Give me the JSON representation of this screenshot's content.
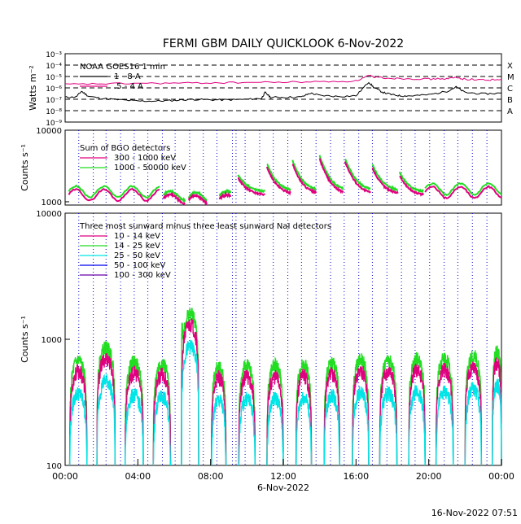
{
  "title": "FERMI GBM DAILY QUICKLOOK    6-Nov-2022",
  "footer": "16-Nov-2022 07:51",
  "colors": {
    "black": "#000000",
    "magenta": "#e0007f",
    "green": "#22dd22",
    "cyan": "#00e5e5",
    "blue": "#0000ee",
    "purple": "#6600aa",
    "vline": "#0000cc"
  },
  "chart_data": [
    {
      "type": "line",
      "panel": "goes",
      "ylabel": "Watts m⁻²",
      "yscale": "log",
      "ylim": [
        1e-09,
        0.001
      ],
      "ytick_labels": [
        "10⁻³",
        "10⁻⁴",
        "10⁻⁵",
        "10⁻⁶",
        "10⁻⁷",
        "10⁻⁸",
        "10⁻⁹"
      ],
      "flare_classes": [
        "X",
        "M",
        "C",
        "B",
        "A"
      ],
      "legend_title": "NOAA GOES16 1 min",
      "series": [
        {
          "name": "1 - 8 A",
          "color_key": "black",
          "x": [
            0,
            0.6,
            0.9,
            1.3,
            2,
            3,
            4,
            5,
            6,
            7,
            8,
            9,
            10,
            10.8,
            11,
            11.3,
            12,
            13,
            13.5,
            14,
            15,
            16,
            16.7,
            17,
            17.5,
            18,
            18.5,
            19,
            20,
            21,
            21.5,
            22,
            23,
            24
          ],
          "y": [
            1.5e-07,
            1.6e-07,
            5e-07,
            1.8e-07,
            1.2e-07,
            9e-08,
            7e-08,
            7e-08,
            8e-08,
            1e-07,
            9e-08,
            9e-08,
            1e-07,
            1.2e-07,
            4e-07,
            1.5e-07,
            1.5e-07,
            1.6e-07,
            3.5e-07,
            2.2e-07,
            1.8e-07,
            2e-07,
            3.3e-06,
            1e-06,
            4e-07,
            2.5e-07,
            2e-07,
            2e-07,
            2.5e-07,
            5e-07,
            1.2e-06,
            4e-07,
            3e-07,
            3.5e-07
          ]
        },
        {
          "name": ".5 - 4 A",
          "color_key": "magenta",
          "x": [
            0,
            2,
            4,
            6,
            8,
            10,
            12,
            14,
            16,
            16.7,
            17,
            18,
            19,
            20,
            21,
            21.5,
            22,
            23,
            24
          ],
          "y": [
            2e-06,
            2.3e-06,
            2.5e-06,
            2.6e-06,
            2.8e-06,
            3e-06,
            3.2e-06,
            3.5e-06,
            4e-06,
            1.2e-05,
            9e-06,
            7e-06,
            6.5e-06,
            6e-06,
            6.5e-06,
            8e-06,
            6e-06,
            5e-06,
            5.5e-06
          ]
        }
      ]
    },
    {
      "type": "line",
      "panel": "bgo",
      "ylabel": "Counts s⁻¹",
      "yscale": "log",
      "ylim": [
        900,
        10000
      ],
      "ytick_labels": [
        "10000",
        "1000"
      ],
      "legend_title": "Sum of BGO detectors",
      "series": [
        {
          "name": "300 - 1000 keV",
          "color_key": "magenta"
        },
        {
          "name": "1000 - 50000 keV",
          "color_key": "green"
        }
      ],
      "orbit_segments": [
        {
          "x0": 0.2,
          "x1": 5.2,
          "base": 1150,
          "peak": 1650
        },
        {
          "x0": 5.4,
          "x1": 6.6,
          "base": 1050,
          "peak": 1400
        },
        {
          "x0": 6.8,
          "x1": 7.8,
          "base": 1000,
          "peak": 1350
        },
        {
          "x0": 8.5,
          "x1": 9.1,
          "base": 1050,
          "peak": 1400
        },
        {
          "x0": 9.5,
          "x1": 11.0,
          "base": 1350,
          "peak": 2400
        },
        {
          "x0": 11.1,
          "x1": 12.4,
          "base": 1400,
          "peak": 3400
        },
        {
          "x0": 12.5,
          "x1": 13.8,
          "base": 1400,
          "peak": 3800
        },
        {
          "x0": 14.0,
          "x1": 15.3,
          "base": 1400,
          "peak": 4400
        },
        {
          "x0": 15.4,
          "x1": 16.8,
          "base": 1400,
          "peak": 4000
        },
        {
          "x0": 16.9,
          "x1": 18.3,
          "base": 1400,
          "peak": 3300
        },
        {
          "x0": 18.4,
          "x1": 19.7,
          "base": 1350,
          "peak": 2600
        },
        {
          "x0": 19.8,
          "x1": 24.0,
          "base": 1250,
          "peak": 1800
        }
      ]
    },
    {
      "type": "line",
      "panel": "nai",
      "ylabel": "Counts s⁻¹",
      "yscale": "log",
      "ylim": [
        100,
        10000
      ],
      "ytick_labels": [
        "10000",
        "1000",
        "100"
      ],
      "legend_title": "Three most sunward minus three least sunward NaI detectors",
      "series": [
        {
          "name": "10 - 14 keV",
          "color_key": "magenta",
          "scale": 0.82
        },
        {
          "name": "14 - 25 keV",
          "color_key": "green",
          "scale": 1.0
        },
        {
          "name": "25 - 50 keV",
          "color_key": "cyan",
          "scale": 0.55
        },
        {
          "name": "50 - 100 keV",
          "color_key": "blue",
          "scale": 0.0
        },
        {
          "name": "100 - 300 keV",
          "color_key": "purple",
          "scale": 0.0
        }
      ],
      "day_segments": [
        {
          "x0": 0.25,
          "x1": 1.2,
          "peak": 680
        },
        {
          "x0": 1.75,
          "x1": 2.75,
          "peak": 860
        },
        {
          "x0": 3.3,
          "x1": 4.3,
          "peak": 660
        },
        {
          "x0": 4.85,
          "x1": 5.8,
          "peak": 640
        },
        {
          "x0": 6.4,
          "x1": 7.35,
          "peak": 1600
        },
        {
          "x0": 8.05,
          "x1": 8.85,
          "peak": 600
        },
        {
          "x0": 9.55,
          "x1": 10.45,
          "peak": 620
        },
        {
          "x0": 11.1,
          "x1": 12.0,
          "peak": 620
        },
        {
          "x0": 12.7,
          "x1": 13.55,
          "peak": 630
        },
        {
          "x0": 14.25,
          "x1": 15.1,
          "peak": 650
        },
        {
          "x0": 15.8,
          "x1": 16.7,
          "peak": 690
        },
        {
          "x0": 17.3,
          "x1": 18.25,
          "peak": 680
        },
        {
          "x0": 18.9,
          "x1": 19.8,
          "peak": 700
        },
        {
          "x0": 20.4,
          "x1": 21.35,
          "peak": 700
        },
        {
          "x0": 22.0,
          "x1": 22.9,
          "peak": 740
        },
        {
          "x0": 23.5,
          "x1": 24.0,
          "peak": 800
        }
      ],
      "x_tick_labels": [
        "00:00",
        "04:00",
        "08:00",
        "12:00",
        "16:00",
        "20:00",
        "00:00"
      ],
      "xlabel": "6-Nov-2022",
      "xlim": [
        0,
        24
      ]
    }
  ],
  "orbit_boundaries_hours": [
    0.75,
    1.55,
    2.25,
    3.05,
    3.8,
    4.55,
    5.35,
    6.05,
    6.85,
    7.6,
    8.35,
    9.2,
    9.4,
    9.9,
    10.7,
    11.45,
    12.25,
    13.0,
    13.8,
    14.6,
    15.35,
    16.15,
    16.9,
    17.7,
    18.5,
    19.25,
    20.05,
    20.85,
    21.6,
    22.4,
    23.2
  ]
}
